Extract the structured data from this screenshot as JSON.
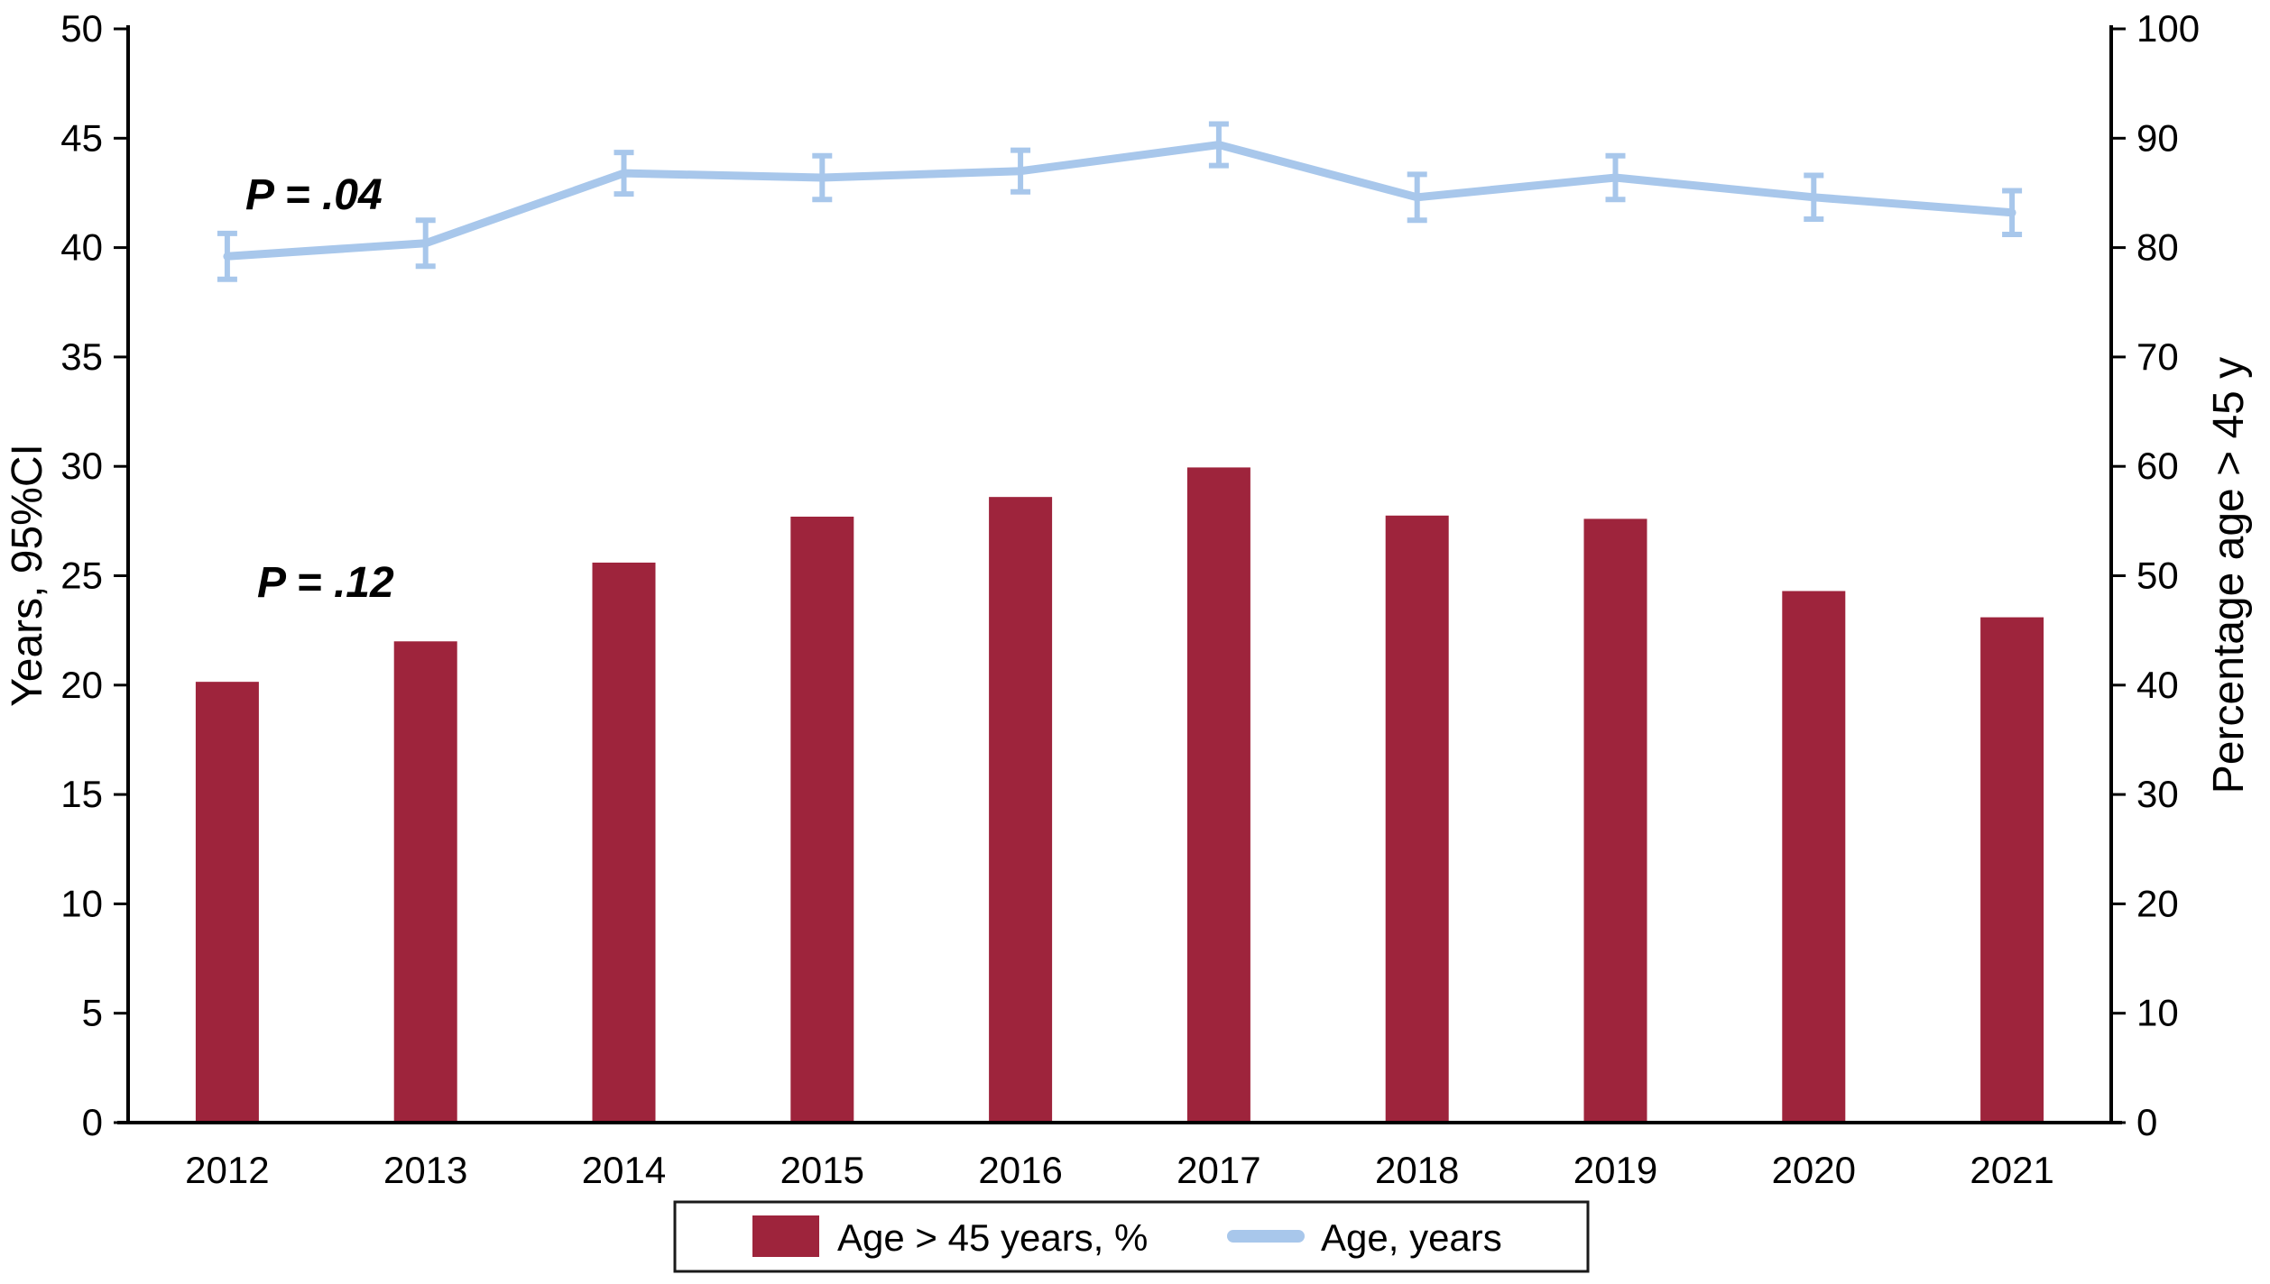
{
  "figure": {
    "left_axis": {
      "title": "Years, 95%CI",
      "ticks": [
        0,
        5,
        10,
        15,
        20,
        25,
        30,
        35,
        40,
        45,
        50
      ]
    },
    "right_axis": {
      "title": "Percentage age > 45 y",
      "ticks": [
        0,
        10,
        20,
        30,
        40,
        50,
        60,
        70,
        80,
        90,
        100
      ]
    },
    "x_axis": {
      "categories": [
        "2012",
        "2013",
        "2014",
        "2015",
        "2016",
        "2017",
        "2018",
        "2019",
        "2020",
        "2021"
      ]
    },
    "annotations": [
      {
        "text": "P = .04",
        "color": "#A8C7EB",
        "series": "Age, years"
      },
      {
        "text": "P = .12",
        "color": "#9E243C",
        "series": "Age > 45 years, %"
      }
    ],
    "legend": [
      {
        "swatch": "bar",
        "color": "#9E243C",
        "label": "Age > 45 years, %"
      },
      {
        "swatch": "line",
        "color": "#A8C7EB",
        "label": "Age, years"
      }
    ]
  },
  "chart_data": {
    "type": "combo",
    "categories": [
      "2012",
      "2013",
      "2014",
      "2015",
      "2016",
      "2017",
      "2018",
      "2019",
      "2020",
      "2021"
    ],
    "series": [
      {
        "name": "Age > 45 years, %",
        "type": "bar",
        "axis": "right",
        "color": "#9E243C",
        "values": [
          40.3,
          44.0,
          51.2,
          55.4,
          57.2,
          59.9,
          55.5,
          55.2,
          48.6,
          46.2
        ]
      },
      {
        "name": "Age, years",
        "type": "line",
        "axis": "left",
        "color": "#A8C7EB",
        "values": [
          39.6,
          40.2,
          43.4,
          43.2,
          43.5,
          44.7,
          42.3,
          43.2,
          42.3,
          41.6
        ],
        "ci_halfwidth": [
          1.05,
          1.05,
          0.95,
          1.0,
          0.95,
          0.95,
          1.05,
          1.0,
          1.0,
          1.0
        ]
      }
    ],
    "left_ylabel": "Years, 95%CI",
    "right_ylabel": "Percentage age > 45 y",
    "left_ylim": [
      0,
      50
    ],
    "right_ylim": [
      0,
      100
    ],
    "grid": false,
    "legend_position": "bottom",
    "p_values": {
      "line_series": "P = .04",
      "bar_series": "P = .12"
    }
  }
}
